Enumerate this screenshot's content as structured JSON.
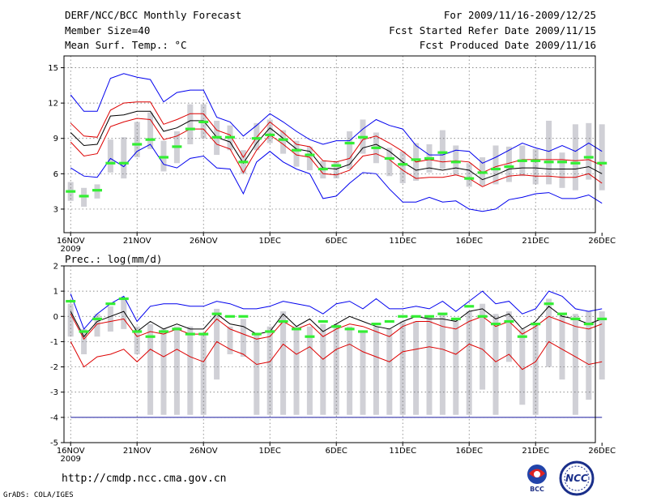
{
  "header": {
    "title": "DERF/NCC/BCC Monthly Forecast",
    "member_size": "Member Size=40",
    "variable": "Mean Surf. Temp.: °C",
    "period": "For 2009/11/16-2009/12/25",
    "started": "Fcst Started Refer Date 2009/11/15",
    "produced": "Fcst Produced Date 2009/11/16"
  },
  "precip_label": "Prec.: log(mm/d)",
  "footer": {
    "url": "http://cmdp.ncc.cma.gov.cn",
    "credit": "GrADS: COLA/IGES"
  },
  "logos": {
    "bcc": "BCC",
    "ncc": "NCC"
  },
  "colors": {
    "envelope": "#0000ee",
    "spread": "#dd0000",
    "mean": "#000000",
    "obs": "#33ee33",
    "box": "#d0d0d6",
    "floor": "#3333aa"
  },
  "chart_data": [
    {
      "type": "line",
      "title": "Mean Surf. Temp.",
      "ylim": [
        1,
        16
      ],
      "yticks": [
        3,
        6,
        9,
        12,
        15
      ],
      "xlim": [
        0.5,
        40.5
      ],
      "xticks": [
        {
          "x": 1,
          "label": "16NOV",
          "sub": "2009"
        },
        {
          "x": 6,
          "label": "21NOV"
        },
        {
          "x": 11,
          "label": "26NOV"
        },
        {
          "x": 16,
          "label": "1DEC"
        },
        {
          "x": 21,
          "label": "6DEC"
        },
        {
          "x": 26,
          "label": "11DEC"
        },
        {
          "x": 31,
          "label": "16DEC"
        },
        {
          "x": 36,
          "label": "21DEC"
        },
        {
          "x": 41,
          "label": "26DEC"
        }
      ],
      "series": [
        {
          "name": "max",
          "role": "envelope",
          "values": [
            12.7,
            11.3,
            11.3,
            14.1,
            14.5,
            14.2,
            14.0,
            12.1,
            12.9,
            13.1,
            13.1,
            10.8,
            10.4,
            9.2,
            10.1,
            11.1,
            10.4,
            9.6,
            8.9,
            8.5,
            8.8,
            8.8,
            9.8,
            10.6,
            10.1,
            9.8,
            8.4,
            7.6,
            7.6,
            8.0,
            7.9,
            6.9,
            7.4,
            8.0,
            8.6,
            8.2,
            7.9,
            8.4,
            7.9,
            8.6,
            7.9
          ]
        },
        {
          "name": "upper",
          "role": "spread",
          "values": [
            10.3,
            9.2,
            9.1,
            11.4,
            12.0,
            12.1,
            12.1,
            10.2,
            10.6,
            11.1,
            11.1,
            9.7,
            9.3,
            7.4,
            9.1,
            10.4,
            9.5,
            8.5,
            8.3,
            7.1,
            7.0,
            7.3,
            8.9,
            9.2,
            8.6,
            7.9,
            7.0,
            7.2,
            7.0,
            7.1,
            7.0,
            6.1,
            6.6,
            6.9,
            7.2,
            7.2,
            7.2,
            7.2,
            7.1,
            7.2,
            6.7
          ]
        },
        {
          "name": "mean",
          "role": "mean",
          "values": [
            9.5,
            8.4,
            8.5,
            10.9,
            11.0,
            11.3,
            11.3,
            9.6,
            9.9,
            10.5,
            10.5,
            9.1,
            8.7,
            6.9,
            8.6,
            9.9,
            9.0,
            8.1,
            7.9,
            6.5,
            6.4,
            6.8,
            8.2,
            8.5,
            7.9,
            7.0,
            6.3,
            6.5,
            6.3,
            6.5,
            6.3,
            5.5,
            5.9,
            6.4,
            6.5,
            6.5,
            6.4,
            6.4,
            6.4,
            6.6,
            6.0
          ]
        },
        {
          "name": "lower",
          "role": "spread",
          "values": [
            8.7,
            7.5,
            7.7,
            10.0,
            10.4,
            10.7,
            10.6,
            8.9,
            9.2,
            9.8,
            9.8,
            8.5,
            8.1,
            6.1,
            8.0,
            9.3,
            8.5,
            7.6,
            7.4,
            6.0,
            5.9,
            6.3,
            7.5,
            7.7,
            7.2,
            6.3,
            5.6,
            5.7,
            5.7,
            5.9,
            5.6,
            4.9,
            5.4,
            5.8,
            5.9,
            5.8,
            5.8,
            5.7,
            5.7,
            6.0,
            5.2
          ]
        },
        {
          "name": "min",
          "role": "envelope",
          "values": [
            6.5,
            5.8,
            5.7,
            7.3,
            6.6,
            7.9,
            8.5,
            6.8,
            6.5,
            7.3,
            7.5,
            6.5,
            6.4,
            4.3,
            7.0,
            7.9,
            7.0,
            6.4,
            6.0,
            3.9,
            4.1,
            5.2,
            6.1,
            6.0,
            4.7,
            3.6,
            3.6,
            4.0,
            3.6,
            3.7,
            3.0,
            2.8,
            3.0,
            3.8,
            4.0,
            4.3,
            4.4,
            3.9,
            3.9,
            4.2,
            3.5
          ]
        }
      ],
      "observed": [
        4.5,
        4.1,
        4.6,
        6.9,
        6.9,
        8.5,
        8.9,
        7.4,
        8.3,
        9.8,
        10.4,
        9.1,
        9.1,
        7.0,
        9.0,
        9.3,
        8.9,
        8.0,
        7.6,
        6.4,
        6.7,
        8.6,
        9.1,
        8.2,
        7.3,
        6.8,
        7.2,
        7.3,
        7.8,
        7.0,
        5.6,
        6.1,
        6.4,
        6.6,
        7.1,
        7.1,
        7.0,
        7.0,
        6.9,
        7.4,
        6.9
      ],
      "boxes": [
        [
          3.7,
          5.3
        ],
        [
          3.2,
          4.8
        ],
        [
          3.9,
          5.1
        ],
        [
          6.1,
          8.9
        ],
        [
          5.6,
          9.1
        ],
        [
          7.4,
          10.4
        ],
        [
          8.1,
          11.2
        ],
        [
          6.2,
          8.8
        ],
        [
          6.9,
          9.6
        ],
        [
          8.5,
          11.9
        ],
        [
          9.0,
          11.9
        ],
        [
          7.6,
          10.5
        ],
        [
          8.0,
          10.1
        ],
        [
          6.0,
          8.0
        ],
        [
          8.0,
          10.3
        ],
        [
          8.6,
          10.6
        ],
        [
          7.7,
          9.7
        ],
        [
          6.6,
          8.8
        ],
        [
          6.3,
          8.3
        ],
        [
          5.6,
          7.1
        ],
        [
          5.6,
          7.1
        ],
        [
          6.4,
          9.6
        ],
        [
          7.7,
          10.6
        ],
        [
          6.9,
          9.5
        ],
        [
          5.8,
          8.2
        ],
        [
          5.2,
          7.9
        ],
        [
          5.4,
          8.6
        ],
        [
          6.1,
          8.5
        ],
        [
          6.4,
          9.7
        ],
        [
          5.9,
          8.4
        ],
        [
          4.9,
          6.9
        ],
        [
          5.0,
          7.4
        ],
        [
          5.1,
          8.4
        ],
        [
          5.3,
          8.3
        ],
        [
          5.8,
          8.4
        ],
        [
          5.1,
          8.1
        ],
        [
          5.1,
          10.5
        ],
        [
          4.8,
          7.8
        ],
        [
          4.6,
          10.2
        ],
        [
          5.5,
          10.3
        ],
        [
          4.6,
          10.2
        ]
      ]
    },
    {
      "type": "line",
      "title": "Prec.: log(mm/d)",
      "ylim": [
        -5,
        2
      ],
      "yticks": [
        -5,
        -4,
        -3,
        -2,
        -1,
        0,
        1,
        2
      ],
      "xlim": [
        0.5,
        40.5
      ],
      "floor": -4,
      "xticks": [
        {
          "x": 1,
          "label": "16NOV",
          "sub": "2009"
        },
        {
          "x": 6,
          "label": "21NOV"
        },
        {
          "x": 11,
          "label": "26NOV"
        },
        {
          "x": 16,
          "label": "1DEC"
        },
        {
          "x": 21,
          "label": "6DEC"
        },
        {
          "x": 26,
          "label": "11DEC"
        },
        {
          "x": 31,
          "label": "16DEC"
        },
        {
          "x": 36,
          "label": "21DEC"
        },
        {
          "x": 41,
          "label": "26DEC"
        }
      ],
      "series": [
        {
          "name": "max",
          "role": "envelope",
          "values": [
            0.9,
            -0.5,
            0.1,
            0.5,
            0.8,
            -0.2,
            0.4,
            0.5,
            0.5,
            0.4,
            0.4,
            0.6,
            0.5,
            0.3,
            0.3,
            0.4,
            0.6,
            0.5,
            0.4,
            0.1,
            0.5,
            0.6,
            0.3,
            0.7,
            0.3,
            0.3,
            0.4,
            0.3,
            0.6,
            0.2,
            0.6,
            1.0,
            0.5,
            0.6,
            0.1,
            0.3,
            1.0,
            0.8,
            0.3,
            0.2,
            0.3
          ]
        },
        {
          "name": "mean",
          "role": "mean",
          "values": [
            0.2,
            -0.8,
            -0.2,
            0.0,
            0.2,
            -0.6,
            -0.2,
            -0.5,
            -0.3,
            -0.5,
            -0.5,
            0.1,
            -0.3,
            -0.4,
            -0.7,
            -0.6,
            0.1,
            -0.4,
            -0.1,
            -0.6,
            -0.3,
            0.0,
            -0.2,
            -0.4,
            -0.5,
            -0.2,
            0.0,
            -0.1,
            -0.1,
            -0.2,
            0.2,
            0.3,
            -0.1,
            0.1,
            -0.5,
            -0.2,
            0.4,
            0.0,
            -0.1,
            -0.3,
            -0.1
          ]
        },
        {
          "name": "upper",
          "role": "spread",
          "values": [
            0.1,
            -0.9,
            -0.3,
            -0.2,
            -0.1,
            -0.8,
            -0.6,
            -0.7,
            -0.5,
            -0.7,
            -0.7,
            -0.1,
            -0.5,
            -0.7,
            -0.9,
            -0.8,
            -0.2,
            -0.5,
            -0.3,
            -0.8,
            -0.5,
            -0.3,
            -0.4,
            -0.6,
            -0.8,
            -0.4,
            -0.2,
            -0.2,
            -0.4,
            -0.5,
            -0.2,
            0.0,
            -0.4,
            -0.2,
            -0.7,
            -0.4,
            0.0,
            -0.2,
            -0.4,
            -0.5,
            -0.3
          ]
        },
        {
          "name": "lower",
          "role": "spread",
          "values": [
            -1.0,
            -2.0,
            -1.6,
            -1.5,
            -1.3,
            -1.8,
            -1.3,
            -1.6,
            -1.3,
            -1.6,
            -1.8,
            -1.0,
            -1.3,
            -1.5,
            -1.9,
            -1.8,
            -1.1,
            -1.5,
            -1.2,
            -1.7,
            -1.3,
            -1.1,
            -1.4,
            -1.6,
            -1.8,
            -1.4,
            -1.3,
            -1.2,
            -1.3,
            -1.5,
            -1.1,
            -1.3,
            -1.8,
            -1.5,
            -2.1,
            -1.8,
            -1.0,
            -1.3,
            -1.6,
            -1.9,
            -1.8
          ]
        }
      ],
      "observed": [
        0.6,
        -0.6,
        -0.1,
        0.5,
        0.7,
        -0.6,
        -0.8,
        -0.6,
        -0.5,
        -0.7,
        -0.7,
        0.1,
        0.0,
        0.0,
        -0.7,
        -0.6,
        -0.2,
        -0.5,
        -0.8,
        -0.2,
        -0.4,
        -0.5,
        -0.6,
        -0.3,
        -0.2,
        0.0,
        0.0,
        0.0,
        0.1,
        -0.1,
        0.4,
        0.0,
        -0.3,
        -0.2,
        -0.8,
        -0.3,
        0.5,
        0.1,
        -0.1,
        -0.3,
        -0.1
      ],
      "boxes": [
        [
          -0.8,
          0.5
        ],
        [
          -1.5,
          -0.5
        ],
        [
          -0.8,
          0.1
        ],
        [
          -0.6,
          0.4
        ],
        [
          -0.5,
          0.7
        ],
        [
          -1.5,
          -0.4
        ],
        [
          -3.9,
          -0.3
        ],
        [
          -3.9,
          -0.5
        ],
        [
          -3.9,
          -0.4
        ],
        [
          -3.9,
          -0.4
        ],
        [
          -3.9,
          -0.7
        ],
        [
          -2.5,
          0.3
        ],
        [
          -1.5,
          -0.4
        ],
        [
          -1.6,
          -0.1
        ],
        [
          -3.9,
          -0.7
        ],
        [
          -3.9,
          -0.4
        ],
        [
          -3.9,
          0.2
        ],
        [
          -3.9,
          -0.4
        ],
        [
          -3.9,
          -0.4
        ],
        [
          -3.9,
          -0.3
        ],
        [
          -3.9,
          -0.3
        ],
        [
          -3.9,
          -0.4
        ],
        [
          -3.9,
          -0.6
        ],
        [
          -3.9,
          -0.4
        ],
        [
          -3.9,
          -0.5
        ],
        [
          -3.9,
          -0.2
        ],
        [
          -3.9,
          -0.2
        ],
        [
          -3.9,
          0.0
        ],
        [
          -3.9,
          0.1
        ],
        [
          -3.9,
          -0.1
        ],
        [
          -3.9,
          0.2
        ],
        [
          -2.9,
          0.5
        ],
        [
          -3.9,
          0.1
        ],
        [
          -1.8,
          0.2
        ],
        [
          -3.5,
          -0.5
        ],
        [
          -3.9,
          -0.3
        ],
        [
          -2.0,
          0.7
        ],
        [
          -2.5,
          0.1
        ],
        [
          -3.9,
          0.1
        ],
        [
          -3.3,
          0.2
        ],
        [
          -2.5,
          0.2
        ]
      ]
    }
  ]
}
